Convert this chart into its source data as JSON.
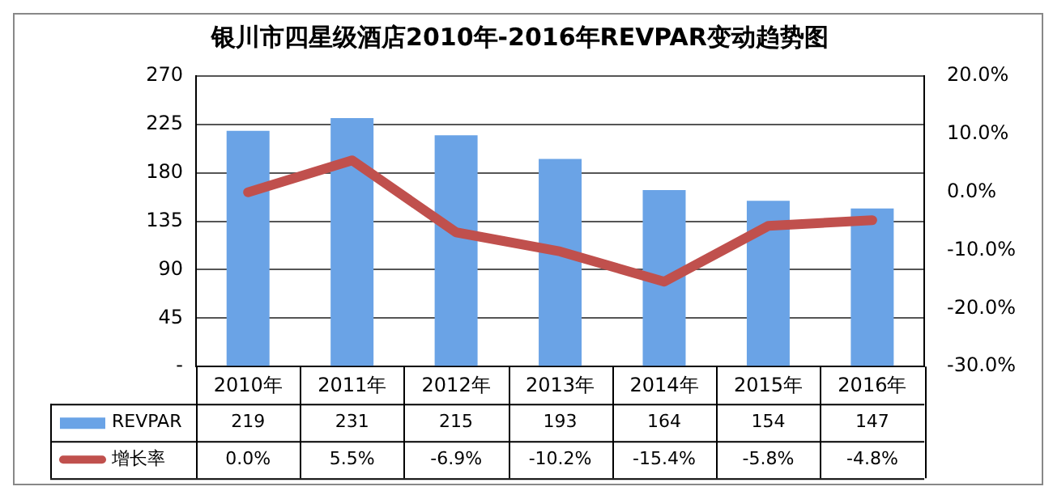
{
  "chart_data": {
    "type": "bar",
    "title": "银川市四星级酒店2010年-2016年REVPAR变动趋势图",
    "categories": [
      "2010年",
      "2011年",
      "2012年",
      "2013年",
      "2014年",
      "2015年",
      "2016年"
    ],
    "series": [
      {
        "name": "REVPAR",
        "color": "#6aa3e6",
        "values": [
          219,
          231,
          215,
          193,
          164,
          154,
          147
        ],
        "value_labels": [
          "219",
          "231",
          "215",
          "193",
          "164",
          "154",
          "147"
        ]
      },
      {
        "name": "增长率",
        "type": "line",
        "axis": "y2",
        "color": "#c0504d",
        "values": [
          0.0,
          5.5,
          -6.9,
          -10.2,
          -15.4,
          -5.8,
          -4.8
        ],
        "value_labels": [
          "0.0%",
          "5.5%",
          "-6.9%",
          "-10.2%",
          "-15.4%",
          "-5.8%",
          "-4.8%"
        ]
      }
    ],
    "ylim": [
      0,
      270
    ],
    "yticks": [
      {
        "value": 0,
        "label": "-"
      },
      45,
      90,
      135,
      180,
      225,
      270
    ],
    "y2lim": [
      -30,
      20
    ],
    "y2ticks": [
      {
        "value": -30,
        "label": "-30.0%"
      },
      {
        "value": -20,
        "label": "-20.0%"
      },
      {
        "value": -10,
        "label": "-10.0%"
      },
      {
        "value": 0,
        "label": "0.0%"
      },
      {
        "value": 10,
        "label": "10.0%"
      },
      {
        "value": 20,
        "label": "20.0%"
      }
    ],
    "grid": "y",
    "legend": "bottom",
    "marker": "none",
    "line_style": "solid"
  }
}
